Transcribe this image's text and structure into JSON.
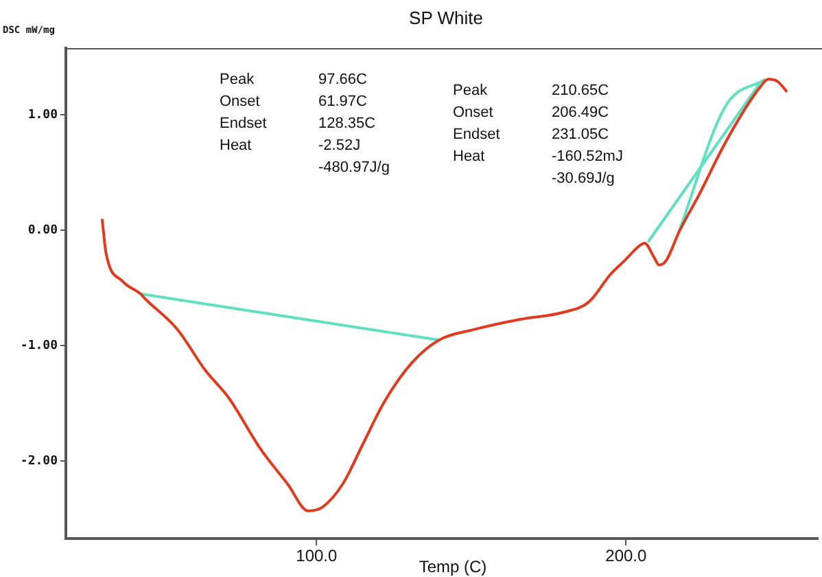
{
  "chart_data": {
    "type": "line",
    "title": "SP White",
    "xlabel": "Temp (C)",
    "ylabel": "DSC mW/mg",
    "xlim": [
      19,
      262
    ],
    "ylim": [
      -2.67,
      1.58
    ],
    "xticks": [
      {
        "value": 100,
        "label": "100.0"
      },
      {
        "value": 200,
        "label": "200.0"
      }
    ],
    "yticks": [
      {
        "value": -2,
        "label": "-2.00"
      },
      {
        "value": -1,
        "label": "-1.00"
      },
      {
        "value": 0,
        "label": "0.00"
      },
      {
        "value": 1,
        "label": "1.00"
      }
    ],
    "grid": false,
    "legend": false,
    "marker": "none",
    "line_style": "solid",
    "annotations": [
      "Peak",
      "97.66C",
      "Onset",
      "61.97C",
      "Endset",
      "128.35C",
      "Heat",
      "-2.52J",
      "-480.97J/g",
      "Peak",
      "210.65C",
      "Onset",
      "206.49C",
      "Endset",
      "231.05C",
      "Heat",
      "-160.52mJ",
      "-30.69J/g"
    ],
    "series": [
      {
        "color": "#e03a1f",
        "x": [
          30.7,
          32,
          37.3,
          43.1,
          44.9,
          55.1,
          64,
          71.6,
          81.8,
          90.7,
          97.3,
          101.8,
          108.4,
          115,
          121.8,
          130.7,
          139.6,
          150.7,
          166,
          179.6,
          188,
          195,
          199.6,
          204,
          206,
          209,
          210.7,
          213,
          217,
          224,
          230.7,
          237,
          243,
          246,
          249,
          252
        ],
        "values": [
          0.1,
          -0.2,
          -0.44,
          -0.55,
          -0.6,
          -0.86,
          -1.21,
          -1.45,
          -1.89,
          -2.2,
          -2.43,
          -2.4,
          -2.2,
          -1.85,
          -1.49,
          -1.15,
          -0.95,
          -0.86,
          -0.77,
          -0.71,
          -0.62,
          -0.38,
          -0.26,
          -0.14,
          -0.11,
          -0.23,
          -0.3,
          -0.26,
          -0.02,
          0.33,
          0.69,
          0.99,
          1.23,
          1.31,
          1.29,
          1.2
        ]
      },
      {
        "color": "#5fe0c0",
        "x": [
          43.1,
          139.6
        ],
        "values": [
          -0.55,
          -0.95
        ]
      },
      {
        "color": "#5fe0c0",
        "x": [
          207.1,
          243.1
        ],
        "values": [
          -0.1,
          1.27
        ]
      },
      {
        "color": "#5fe0c0",
        "x": [
          217,
          232,
          245
        ],
        "values": [
          -0.02,
          1.07,
          1.31
        ]
      }
    ]
  }
}
